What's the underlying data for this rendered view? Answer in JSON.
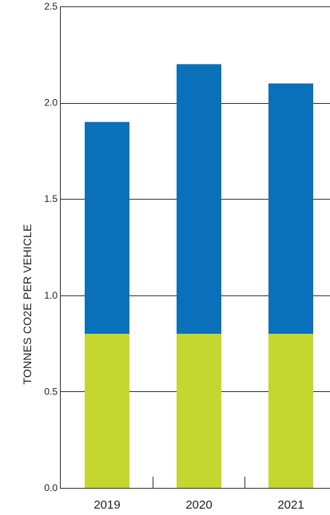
{
  "chart_data": {
    "type": "bar",
    "stacked": true,
    "title": "",
    "xlabel": "",
    "ylabel": "TONNES CO2E PER VEHICLE",
    "categories": [
      "2019",
      "2020",
      "2021"
    ],
    "series": [
      {
        "values": [
          0.8,
          0.8,
          0.8
        ],
        "color": "#c4d630"
      },
      {
        "values": [
          1.1,
          1.4,
          1.3
        ],
        "color": "#0a70b9"
      }
    ],
    "ylim": [
      0,
      2.5
    ],
    "yticks": [
      "0.0",
      "0.5",
      "1.0",
      "1.5",
      "2.0",
      "2.5"
    ],
    "grid": true,
    "legend": "none"
  }
}
